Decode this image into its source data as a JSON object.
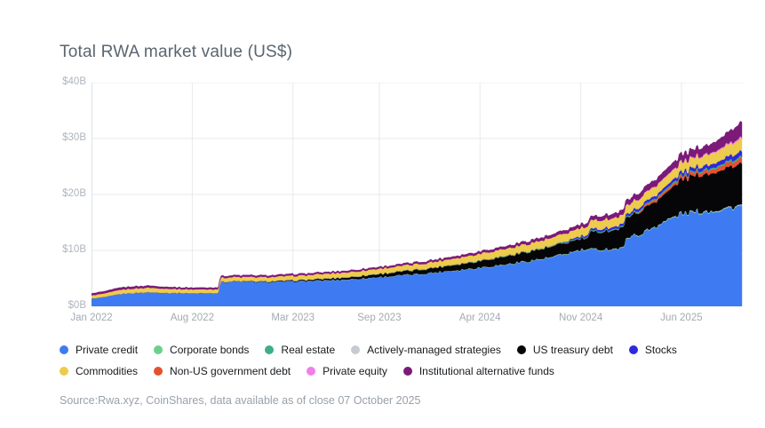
{
  "header": {
    "title": "Total RWA market value (US$)"
  },
  "source_note": "Source:Rwa.xyz, CoinShares, data available as of close 07 October 2025",
  "chart_data": {
    "type": "area",
    "stacked": true,
    "title": "Total RWA market value (US$)",
    "unit": "US$ billions",
    "grid": true,
    "legend_position": "bottom",
    "x_range_labels": [
      "Jan 2022",
      "Oct 2025"
    ],
    "months_extent": 45.2,
    "ylim": [
      0,
      40
    ],
    "y_ticks": [
      {
        "label": "$0B",
        "v": 0
      },
      {
        "label": "$10B",
        "v": 10
      },
      {
        "label": "$20B",
        "v": 20
      },
      {
        "label": "$30B",
        "v": 30
      },
      {
        "label": "$40B",
        "v": 40
      }
    ],
    "x_ticks": [
      {
        "label": "Jan 2022",
        "m": 0
      },
      {
        "label": "Aug 2022",
        "m": 7
      },
      {
        "label": "Mar 2023",
        "m": 14
      },
      {
        "label": "Sep 2023",
        "m": 20
      },
      {
        "label": "Apr 2024",
        "m": 27
      },
      {
        "label": "Nov 2024",
        "m": 34
      },
      {
        "label": "Jun 2025",
        "m": 41
      }
    ],
    "axis_note": "x values are months since Jan 2022; series points are [month, $B] breakpoints of the stacked bands (bottom to top)",
    "series": [
      {
        "name": "Private credit",
        "color": "#3E7BF2",
        "points": [
          [
            0,
            1.4
          ],
          [
            1,
            1.7
          ],
          [
            2,
            2.2
          ],
          [
            3,
            2.4
          ],
          [
            4,
            2.5
          ],
          [
            5,
            2.4
          ],
          [
            6,
            2.35
          ],
          [
            7,
            2.3
          ],
          [
            8.8,
            2.3
          ],
          [
            8.95,
            4.3
          ],
          [
            10,
            4.4
          ],
          [
            12,
            4.3
          ],
          [
            15,
            4.5
          ],
          [
            18,
            4.8
          ],
          [
            20,
            5.2
          ],
          [
            23,
            5.8
          ],
          [
            26,
            6.6
          ],
          [
            29,
            7.5
          ],
          [
            32,
            8.7
          ],
          [
            34,
            10.0
          ],
          [
            36.5,
            10.25
          ],
          [
            37.0,
            10.3
          ],
          [
            37.15,
            12.4
          ],
          [
            38,
            12.7
          ],
          [
            39,
            14.0
          ],
          [
            40,
            15.3
          ],
          [
            41,
            16.5
          ],
          [
            42,
            16.8
          ],
          [
            43,
            17.0
          ],
          [
            44,
            17.4
          ],
          [
            45.2,
            17.9
          ]
        ]
      },
      {
        "name": "Corporate bonds",
        "color": "#6CD08C",
        "points": [
          [
            0,
            0
          ],
          [
            12,
            0.02
          ],
          [
            24,
            0.04
          ],
          [
            36,
            0.06
          ],
          [
            45.2,
            0.1
          ]
        ]
      },
      {
        "name": "Actively-managed strategies",
        "color": "#C7CBD1",
        "points": [
          [
            0,
            0
          ],
          [
            24,
            0.02
          ],
          [
            30,
            0.05
          ],
          [
            40,
            0.07
          ],
          [
            45.2,
            0.1
          ]
        ]
      },
      {
        "name": "US treasury debt",
        "color": "#060608",
        "points": [
          [
            0,
            0
          ],
          [
            9,
            0.05
          ],
          [
            12,
            0.1
          ],
          [
            14,
            0.15
          ],
          [
            17,
            0.3
          ],
          [
            20,
            0.55
          ],
          [
            23,
            0.75
          ],
          [
            26,
            1.05
          ],
          [
            29,
            1.45
          ],
          [
            32,
            1.85
          ],
          [
            34.5,
            2.0
          ],
          [
            34.65,
            3.0
          ],
          [
            36,
            3.3
          ],
          [
            38,
            3.9
          ],
          [
            39,
            4.4
          ],
          [
            40,
            4.9
          ],
          [
            41,
            6.0
          ],
          [
            42,
            6.4
          ],
          [
            43,
            6.7
          ],
          [
            44,
            7.0
          ],
          [
            45.2,
            7.4
          ]
        ]
      },
      {
        "name": "Non-US government debt",
        "color": "#E4512E",
        "points": [
          [
            0,
            0
          ],
          [
            37.5,
            0
          ],
          [
            38.2,
            0.3
          ],
          [
            39,
            0.4
          ],
          [
            41,
            0.5
          ],
          [
            43,
            0.7
          ],
          [
            45.2,
            0.95
          ]
        ]
      },
      {
        "name": "Real estate",
        "color": "#3EAE8C",
        "points": [
          [
            0,
            0
          ],
          [
            14,
            0.03
          ],
          [
            20,
            0.06
          ],
          [
            26,
            0.1
          ],
          [
            32,
            0.15
          ],
          [
            38,
            0.2
          ],
          [
            45.2,
            0.3
          ]
        ]
      },
      {
        "name": "Stocks",
        "color": "#2B2BDB",
        "points": [
          [
            0,
            0
          ],
          [
            32.5,
            0
          ],
          [
            33,
            0.15
          ],
          [
            34,
            0.3
          ],
          [
            36,
            0.4
          ],
          [
            38,
            0.45
          ],
          [
            40,
            0.55
          ],
          [
            41,
            0.6
          ],
          [
            43,
            0.7
          ],
          [
            44,
            0.8
          ],
          [
            45.2,
            0.95
          ]
        ]
      },
      {
        "name": "Commodities",
        "color": "#EDCB4B",
        "points": [
          [
            0,
            0.55
          ],
          [
            2,
            0.75
          ],
          [
            4,
            0.8
          ],
          [
            6,
            0.7
          ],
          [
            8,
            0.65
          ],
          [
            10,
            0.75
          ],
          [
            12,
            0.75
          ],
          [
            16,
            0.85
          ],
          [
            20,
            0.9
          ],
          [
            24,
            1.0
          ],
          [
            27,
            1.2
          ],
          [
            30,
            1.3
          ],
          [
            33,
            1.45
          ],
          [
            36,
            1.55
          ],
          [
            38,
            1.55
          ],
          [
            40,
            1.65
          ],
          [
            41,
            1.7
          ],
          [
            43,
            1.85
          ],
          [
            44.5,
            2.1
          ],
          [
            45.2,
            2.25
          ]
        ]
      },
      {
        "name": "Private equity",
        "color": "#EF7FE9",
        "points": [
          [
            0,
            0
          ],
          [
            34.5,
            0
          ],
          [
            35,
            0.04
          ],
          [
            38,
            0.08
          ],
          [
            40,
            0.12
          ],
          [
            42,
            0.16
          ],
          [
            44,
            0.22
          ],
          [
            45.2,
            0.3
          ]
        ]
      },
      {
        "name": "Institutional alternative funds",
        "color": "#7B1A78",
        "points": [
          [
            0,
            0.35
          ],
          [
            2,
            0.4
          ],
          [
            4,
            0.35
          ],
          [
            6,
            0.3
          ],
          [
            12,
            0.3
          ],
          [
            16,
            0.28
          ],
          [
            20,
            0.3
          ],
          [
            24,
            0.35
          ],
          [
            28,
            0.42
          ],
          [
            32,
            0.55
          ],
          [
            34,
            0.62
          ],
          [
            36,
            0.75
          ],
          [
            37,
            0.85
          ],
          [
            38,
            1.0
          ],
          [
            39,
            1.1
          ],
          [
            40,
            1.2
          ],
          [
            41,
            1.3
          ],
          [
            42,
            1.4
          ],
          [
            43,
            1.55
          ],
          [
            44,
            1.9
          ],
          [
            44.8,
            2.4
          ],
          [
            45.2,
            2.7
          ]
        ]
      }
    ],
    "legend_rows": [
      [
        "Private credit",
        "Corporate bonds",
        "Real estate",
        "Actively-managed strategies",
        "US treasury debt",
        "Stocks"
      ],
      [
        "Commodities",
        "Non-US government debt",
        "Private equity",
        "Institutional alternative funds"
      ]
    ]
  }
}
